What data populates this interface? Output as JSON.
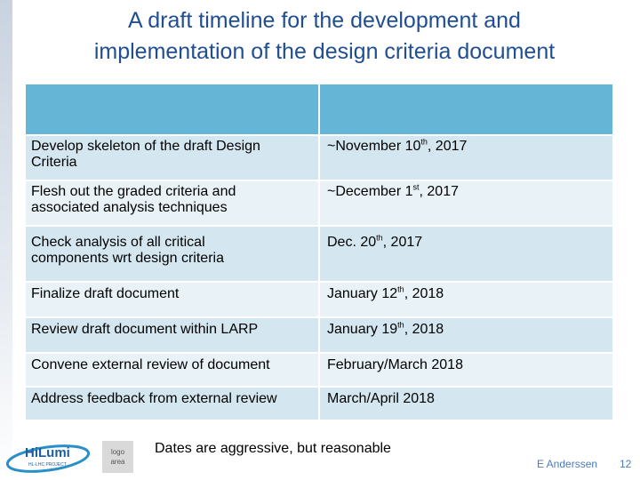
{
  "slide": {
    "title_line1": "A draft timeline for the development and",
    "title_line2": "implementation of the design criteria document"
  },
  "table": {
    "header": [
      "",
      ""
    ],
    "rows": [
      {
        "task_line1": "Develop skeleton of the draft Design",
        "task_line2": "Criteria",
        "date_pre": "~November 10",
        "date_sup": "th",
        "date_post": ", 2017"
      },
      {
        "task_line1": "Flesh out the graded criteria and",
        "task_line2": "associated analysis techniques",
        "date_pre": "~December 1",
        "date_sup": "st",
        "date_post": ", 2017"
      },
      {
        "task_line1": "Check analysis of all critical",
        "task_line2": "components wrt design criteria",
        "date_pre": "Dec. 20",
        "date_sup": "th",
        "date_post": ", 2017"
      },
      {
        "task_line1": "Finalize draft document",
        "date_pre": "January 12",
        "date_sup": "th",
        "date_post": ", 2018"
      },
      {
        "task_line1": "Review draft document within LARP",
        "date_pre": "January 19",
        "date_sup": "th",
        "date_post": ", 2018"
      },
      {
        "task_line1": "Convene external review of document",
        "date_pre": "February/March 2018"
      },
      {
        "task_line1": "Address feedback from external review",
        "date_pre": "March/April 2018"
      }
    ]
  },
  "footer": {
    "logo_text": "HiLumi",
    "logo_subtext": "HL-LHC PROJECT",
    "logo_area_line1": "logo",
    "logo_area_line2": "area",
    "note": "Dates are aggressive, but reasonable",
    "author": "E Anderssen",
    "page_number": "12"
  },
  "colors": {
    "title": "#1f4e92",
    "header_fill": "#65b6d6",
    "row_fill": "#d4e7f0",
    "row_alt_fill": "#e8f2f7",
    "footer_text": "#4a7bb7"
  }
}
